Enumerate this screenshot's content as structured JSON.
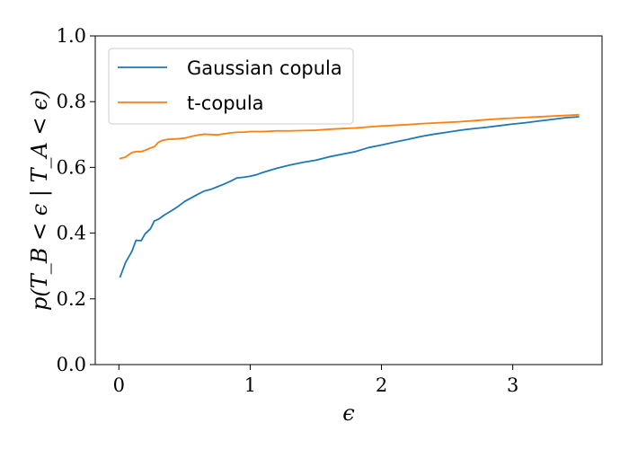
{
  "chart_data": {
    "type": "line",
    "xlabel": "ϵ",
    "ylabel": "p(T_B < ϵ | T_A < ϵ)",
    "xlim": [
      -0.18,
      3.68
    ],
    "ylim": [
      0.0,
      1.0
    ],
    "x_ticks": [
      0,
      1,
      2,
      3
    ],
    "x_tick_labels": [
      "0",
      "1",
      "2",
      "3"
    ],
    "y_ticks": [
      0.0,
      0.2,
      0.4,
      0.6,
      0.8,
      1.0
    ],
    "y_tick_labels": [
      "0.0",
      "0.2",
      "0.4",
      "0.6",
      "0.8",
      "1.0"
    ],
    "grid": false,
    "legend_position": "top-left",
    "series": [
      {
        "name": "Gaussian copula",
        "color": "#1f77b4",
        "x": [
          0.01,
          0.05,
          0.1,
          0.13,
          0.17,
          0.2,
          0.24,
          0.27,
          0.3,
          0.35,
          0.4,
          0.45,
          0.5,
          0.55,
          0.6,
          0.65,
          0.7,
          0.75,
          0.8,
          0.85,
          0.9,
          0.95,
          1.0,
          1.05,
          1.1,
          1.2,
          1.3,
          1.4,
          1.5,
          1.6,
          1.7,
          1.8,
          1.9,
          2.0,
          2.1,
          2.2,
          2.3,
          2.4,
          2.5,
          2.6,
          2.7,
          2.8,
          2.9,
          3.0,
          3.1,
          3.2,
          3.3,
          3.4,
          3.5
        ],
        "y": [
          0.267,
          0.31,
          0.345,
          0.378,
          0.377,
          0.398,
          0.413,
          0.437,
          0.442,
          0.456,
          0.468,
          0.481,
          0.496,
          0.507,
          0.518,
          0.528,
          0.533,
          0.541,
          0.549,
          0.558,
          0.568,
          0.57,
          0.573,
          0.578,
          0.585,
          0.597,
          0.607,
          0.615,
          0.622,
          0.632,
          0.64,
          0.648,
          0.66,
          0.668,
          0.677,
          0.685,
          0.694,
          0.701,
          0.707,
          0.713,
          0.718,
          0.722,
          0.727,
          0.732,
          0.736,
          0.741,
          0.746,
          0.751,
          0.754
        ]
      },
      {
        "name": "t-copula",
        "color": "#ff7f0e",
        "x": [
          0.01,
          0.05,
          0.08,
          0.1,
          0.13,
          0.17,
          0.2,
          0.24,
          0.27,
          0.3,
          0.33,
          0.37,
          0.4,
          0.45,
          0.5,
          0.55,
          0.6,
          0.65,
          0.7,
          0.75,
          0.8,
          0.85,
          0.9,
          0.95,
          1.0,
          1.1,
          1.2,
          1.3,
          1.4,
          1.5,
          1.6,
          1.7,
          1.8,
          1.9,
          2.0,
          2.1,
          2.2,
          2.3,
          2.4,
          2.5,
          2.6,
          2.7,
          2.8,
          2.9,
          3.0,
          3.1,
          3.2,
          3.3,
          3.4,
          3.5
        ],
        "y": [
          0.627,
          0.631,
          0.64,
          0.645,
          0.648,
          0.648,
          0.652,
          0.659,
          0.663,
          0.676,
          0.682,
          0.685,
          0.686,
          0.687,
          0.689,
          0.694,
          0.698,
          0.701,
          0.7,
          0.699,
          0.702,
          0.705,
          0.707,
          0.707,
          0.709,
          0.709,
          0.711,
          0.711,
          0.712,
          0.713,
          0.716,
          0.718,
          0.72,
          0.723,
          0.726,
          0.728,
          0.73,
          0.733,
          0.735,
          0.737,
          0.739,
          0.742,
          0.745,
          0.748,
          0.75,
          0.752,
          0.754,
          0.756,
          0.758,
          0.76
        ]
      }
    ]
  }
}
